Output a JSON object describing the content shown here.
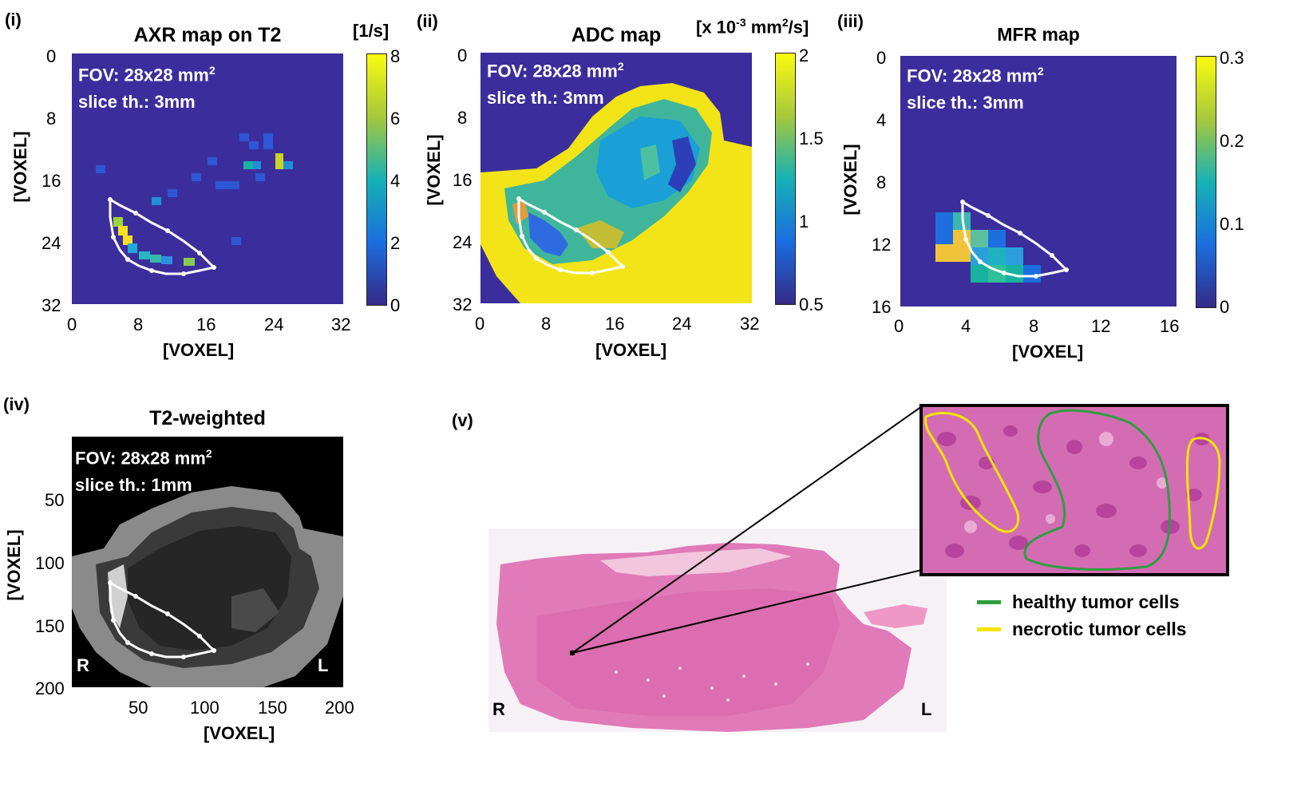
{
  "panels": {
    "i": {
      "label": "(i)",
      "title": "AXR map on T2",
      "unit": "[1/s]",
      "fov_line1": "FOV: 28x28 mm",
      "fov_sup": "2",
      "fov_line2": "slice th.: 3mm",
      "yticks": [
        "0",
        "8",
        "16",
        "24",
        "32"
      ],
      "xticks": [
        "0",
        "8",
        "16",
        "24",
        "32"
      ],
      "cbar_ticks": [
        "8",
        "6",
        "4",
        "2",
        "0"
      ],
      "xlabel": "[VOXEL]",
      "ylabel": "[VOXEL]"
    },
    "ii": {
      "label": "(ii)",
      "title": "ADC map",
      "unit_pre": "[x 10",
      "unit_sup1": "-3",
      "unit_mid": " mm",
      "unit_sup2": "2",
      "unit_post": "/s]",
      "fov_line1": "FOV: 28x28 mm",
      "fov_sup": "2",
      "fov_line2": "slice th.: 3mm",
      "yticks": [
        "0",
        "8",
        "16",
        "24",
        "32"
      ],
      "xticks": [
        "0",
        "8",
        "16",
        "24",
        "32"
      ],
      "cbar_ticks": [
        "2",
        "1.5",
        "1",
        "0.5"
      ],
      "xlabel": "[VOXEL]",
      "ylabel": "[VOXEL]"
    },
    "iii": {
      "label": "(iii)",
      "title": "MFR map",
      "fov_line1": "FOV: 28x28 mm",
      "fov_sup": "2",
      "fov_line2": "slice th.: 3mm",
      "yticks": [
        "0",
        "4",
        "8",
        "12",
        "16"
      ],
      "xticks": [
        "0",
        "4",
        "8",
        "12",
        "16"
      ],
      "cbar_ticks": [
        "0.3",
        "0.2",
        "0.1",
        "0"
      ],
      "xlabel": "[VOXEL]",
      "ylabel": "[VOXEL]"
    },
    "iv": {
      "label": "(iv)",
      "title": "T2-weighted",
      "fov_line1": "FOV: 28x28 mm",
      "fov_sup": "2",
      "fov_line2": "slice th.: 1mm",
      "yticks": [
        "50",
        "100",
        "150",
        "200"
      ],
      "xticks": [
        "50",
        "100",
        "150",
        "200"
      ],
      "xlabel": "[VOXEL]",
      "ylabel": "[VOXEL]",
      "left_marker": "R",
      "right_marker": "L"
    },
    "v": {
      "label": "(v)",
      "left_marker": "R",
      "right_marker": "L",
      "legend": [
        {
          "label": "healthy tumor cells",
          "color": "#2e9e3e"
        },
        {
          "label": "necrotic tumor cells",
          "color": "#f2e600"
        }
      ]
    }
  },
  "colors": {
    "map_background": "#3b2e9c",
    "roi_outline": "#ffffff",
    "parula_low": "#352a87",
    "parula_mid": "#21b2b8",
    "parula_high": "#f9fb0e",
    "histology_pink": "#e07ab8",
    "histology_cell": "#c2479e"
  }
}
